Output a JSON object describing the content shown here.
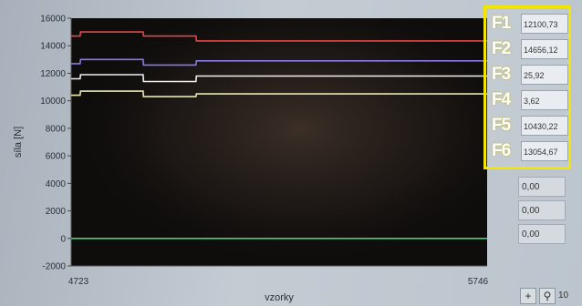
{
  "chart_data": {
    "type": "line",
    "xlabel": "vzorky",
    "ylabel": "síla [N]",
    "xlim": [
      4723,
      5746
    ],
    "ylim": [
      -2000,
      16000
    ],
    "x_ticks": [
      "4723",
      "5746"
    ],
    "y_ticks": [
      "16000",
      "14000",
      "12000",
      "10000",
      "8000",
      "6000",
      "4000",
      "2000",
      "0",
      "-2000"
    ],
    "grid": false,
    "series": [
      {
        "color": "#e04848",
        "x": [
          4723,
          4745,
          4746,
          4900,
          4901,
          5030,
          5031,
          5746
        ],
        "y": [
          14700,
          14700,
          15000,
          15000,
          14700,
          14700,
          14350,
          14350
        ]
      },
      {
        "color": "#8a78e8",
        "x": [
          4723,
          4745,
          4746,
          4900,
          4901,
          5030,
          5031,
          5746
        ],
        "y": [
          12700,
          12700,
          13000,
          13000,
          12600,
          12600,
          12900,
          12900
        ]
      },
      {
        "color": "#f0f0f0",
        "x": [
          4723,
          4745,
          4746,
          4900,
          4901,
          5030,
          5031,
          5746
        ],
        "y": [
          11600,
          11600,
          11900,
          11900,
          11400,
          11400,
          11800,
          11800
        ]
      },
      {
        "color": "#e8e8b0",
        "x": [
          4723,
          4745,
          4746,
          4900,
          4901,
          5030,
          5031,
          5746
        ],
        "y": [
          10400,
          10400,
          10700,
          10700,
          10300,
          10300,
          10500,
          10500
        ]
      },
      {
        "color": "#3fd07a",
        "x": [
          4723,
          5746
        ],
        "y": [
          0,
          0
        ]
      }
    ]
  },
  "indicators": [
    {
      "label": "F1",
      "value": "12100,73"
    },
    {
      "label": "F2",
      "value": "14656,12"
    },
    {
      "label": "F3",
      "value": "25,92"
    },
    {
      "label": "F4",
      "value": "3,62"
    },
    {
      "label": "F5",
      "value": "10430,22"
    },
    {
      "label": "F6",
      "value": "13054,67"
    }
  ],
  "extra_values": [
    "0,00",
    "0,00",
    "0,00"
  ],
  "toolbar": {
    "crosshair_glyph": "+",
    "zoom_glyph": "⚲",
    "partial_text": "10"
  },
  "colors": {
    "highlight": "#f2e600",
    "plot_bg": "#0f0d0c"
  }
}
